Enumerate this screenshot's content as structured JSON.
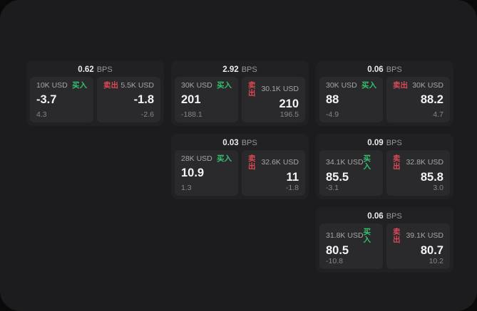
{
  "labels": {
    "buy": "买入",
    "sell": "卖出",
    "bps": "BPS"
  },
  "colors": {
    "background": "#0a0a0a",
    "panel": "#1c1c1e",
    "card": "#212124",
    "tile": "#2a2a2d",
    "buy_green": "#35c06e",
    "sell_red": "#d84a55",
    "text_primary": "#f4f4f5",
    "text_muted": "#97979a"
  },
  "cards": [
    {
      "bps": "0.62",
      "buy": {
        "notional": "10K USD",
        "value": "-3.7",
        "delta": "4.3"
      },
      "sell": {
        "notional": "5.5K USD",
        "value": "-1.8",
        "delta": "-2.6"
      }
    },
    {
      "bps": "2.92",
      "buy": {
        "notional": "30K USD",
        "value": "201",
        "delta": "-188.1"
      },
      "sell": {
        "notional": "30.1K USD",
        "value": "210",
        "delta": "196.5"
      }
    },
    {
      "bps": "0.06",
      "buy": {
        "notional": "30K USD",
        "value": "88",
        "delta": "-4.9"
      },
      "sell": {
        "notional": "30K USD",
        "value": "88.2",
        "delta": "4.7"
      }
    },
    {
      "bps": "0.03",
      "buy": {
        "notional": "28K USD",
        "value": "10.9",
        "delta": "1.3"
      },
      "sell": {
        "notional": "32.6K USD",
        "value": "11",
        "delta": "-1.8"
      }
    },
    {
      "bps": "0.09",
      "buy": {
        "notional": "34.1K USD",
        "value": "85.5",
        "delta": "-3.1"
      },
      "sell": {
        "notional": "32.8K USD",
        "value": "85.8",
        "delta": "3.0"
      }
    },
    {
      "bps": "0.06",
      "buy": {
        "notional": "31.8K USD",
        "value": "80.5",
        "delta": "-10.8"
      },
      "sell": {
        "notional": "39.1K USD",
        "value": "80.7",
        "delta": "10.2"
      }
    }
  ]
}
